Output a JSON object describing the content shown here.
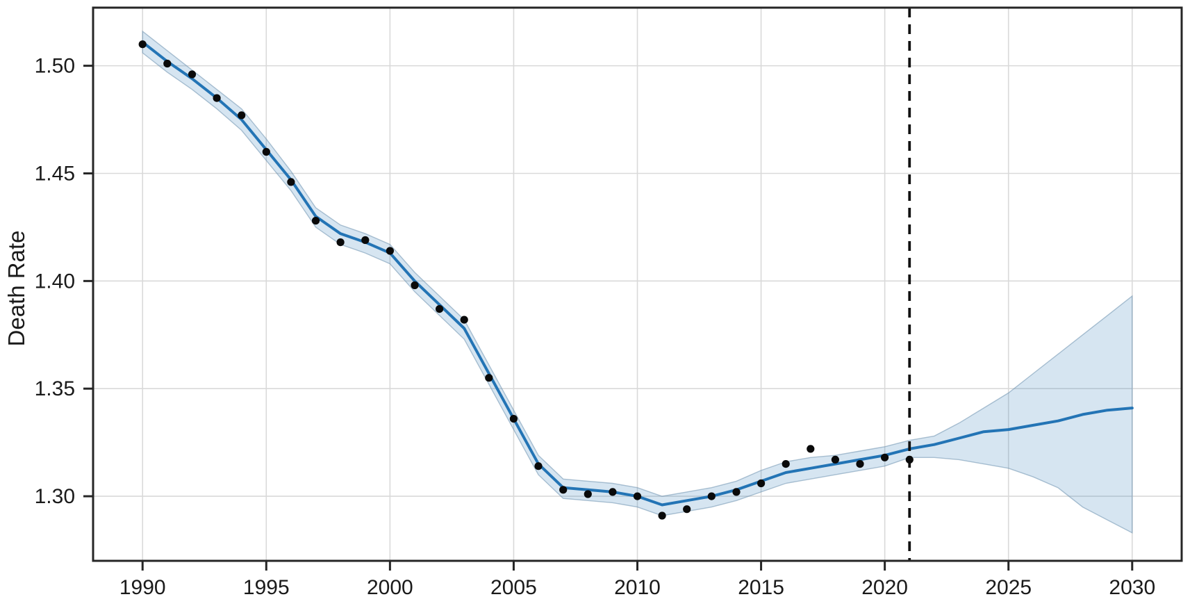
{
  "chart_data": {
    "type": "line",
    "title": "",
    "xlabel": "",
    "ylabel": "Death Rate",
    "xlim": [
      1988.0,
      2032.0
    ],
    "ylim": [
      1.27,
      1.527
    ],
    "grid": true,
    "legend": "none",
    "x_ticks": [
      1990,
      1995,
      2000,
      2005,
      2010,
      2015,
      2020,
      2025,
      2030
    ],
    "x_tick_labels": [
      "1990",
      "1995",
      "2000",
      "2005",
      "2010",
      "2015",
      "2020",
      "2025",
      "2030"
    ],
    "y_ticks": [
      1.3,
      1.35,
      1.4,
      1.45,
      1.5
    ],
    "y_tick_labels": [
      "1.30",
      "1.35",
      "1.40",
      "1.45",
      "1.50"
    ],
    "forecast_cutoff": {
      "x": 2021,
      "style": "dashed",
      "color": "#111111"
    },
    "series": [
      {
        "name": "observed-points",
        "type": "scatter",
        "color": "#0a0a0a",
        "x": [
          1990,
          1991,
          1992,
          1993,
          1994,
          1995,
          1996,
          1997,
          1998,
          1999,
          2000,
          2001,
          2002,
          2003,
          2004,
          2005,
          2006,
          2007,
          2008,
          2009,
          2010,
          2011,
          2012,
          2013,
          2014,
          2015,
          2016,
          2017,
          2018,
          2019,
          2020,
          2021
        ],
        "y": [
          1.51,
          1.501,
          1.496,
          1.485,
          1.477,
          1.46,
          1.446,
          1.428,
          1.418,
          1.419,
          1.414,
          1.398,
          1.387,
          1.382,
          1.355,
          1.336,
          1.314,
          1.303,
          1.301,
          1.302,
          1.3,
          1.291,
          1.294,
          1.3,
          1.302,
          1.306,
          1.315,
          1.322,
          1.317,
          1.315,
          1.318,
          1.317
        ]
      },
      {
        "name": "fitted-line",
        "type": "line",
        "color": "#2374b5",
        "x": [
          1990,
          1991,
          1992,
          1993,
          1994,
          1995,
          1996,
          1997,
          1998,
          1999,
          2000,
          2001,
          2002,
          2003,
          2004,
          2005,
          2006,
          2007,
          2008,
          2009,
          2010,
          2011,
          2012,
          2013,
          2014,
          2015,
          2016,
          2017,
          2018,
          2019,
          2020,
          2021,
          2022,
          2023,
          2024,
          2025,
          2026,
          2027,
          2028,
          2029,
          2030
        ],
        "y": [
          1.511,
          1.502,
          1.494,
          1.485,
          1.475,
          1.461,
          1.447,
          1.43,
          1.422,
          1.418,
          1.413,
          1.4,
          1.389,
          1.378,
          1.357,
          1.336,
          1.315,
          1.304,
          1.303,
          1.302,
          1.3,
          1.296,
          1.298,
          1.3,
          1.303,
          1.307,
          1.311,
          1.313,
          1.315,
          1.317,
          1.319,
          1.322,
          1.324,
          1.327,
          1.33,
          1.331,
          1.333,
          1.335,
          1.338,
          1.34,
          1.341
        ]
      },
      {
        "name": "confidence-band",
        "type": "band",
        "fill": "rgba(35,116,181,0.19)",
        "edge": "rgba(110,145,175,0.55)",
        "x": [
          1990,
          1991,
          1992,
          1993,
          1994,
          1995,
          1996,
          1997,
          1998,
          1999,
          2000,
          2001,
          2002,
          2003,
          2004,
          2005,
          2006,
          2007,
          2008,
          2009,
          2010,
          2011,
          2012,
          2013,
          2014,
          2015,
          2016,
          2017,
          2018,
          2019,
          2020,
          2021,
          2022,
          2023,
          2024,
          2025,
          2026,
          2027,
          2028,
          2029,
          2030
        ],
        "lower": [
          1.506,
          1.497,
          1.489,
          1.48,
          1.47,
          1.456,
          1.442,
          1.425,
          1.417,
          1.413,
          1.408,
          1.395,
          1.384,
          1.373,
          1.352,
          1.331,
          1.31,
          1.299,
          1.298,
          1.297,
          1.295,
          1.291,
          1.293,
          1.295,
          1.298,
          1.302,
          1.306,
          1.308,
          1.31,
          1.312,
          1.314,
          1.318,
          1.318,
          1.317,
          1.315,
          1.313,
          1.309,
          1.304,
          1.295,
          1.289,
          1.283
        ],
        "upper": [
          1.516,
          1.507,
          1.498,
          1.489,
          1.48,
          1.466,
          1.451,
          1.434,
          1.426,
          1.422,
          1.417,
          1.404,
          1.393,
          1.382,
          1.361,
          1.34,
          1.319,
          1.308,
          1.307,
          1.306,
          1.304,
          1.3,
          1.302,
          1.304,
          1.307,
          1.312,
          1.316,
          1.318,
          1.319,
          1.321,
          1.323,
          1.326,
          1.328,
          1.334,
          1.341,
          1.348,
          1.357,
          1.366,
          1.375,
          1.384,
          1.393
        ]
      }
    ],
    "style": {
      "background": "#ffffff",
      "grid_color": "#d9d9d9",
      "spine_color": "#262626",
      "tick_color": "#262626",
      "text_color": "#1a1a1a",
      "line_color": "#2374b5",
      "point_color": "#0a0a0a",
      "cutoff_color": "#111111"
    }
  }
}
